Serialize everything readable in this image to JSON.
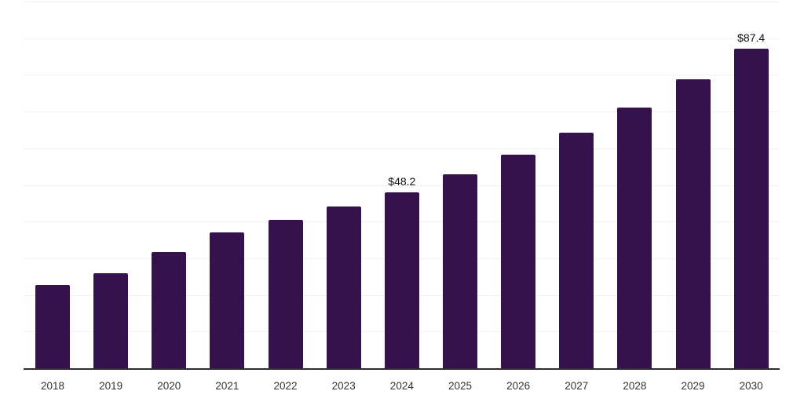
{
  "chart_data": {
    "type": "bar",
    "title": "",
    "xlabel": "",
    "ylabel": "",
    "categories": [
      "2018",
      "2019",
      "2020",
      "2021",
      "2022",
      "2023",
      "2024",
      "2025",
      "2026",
      "2027",
      "2028",
      "2029",
      "2030"
    ],
    "values": [
      22.9,
      26.1,
      32.0,
      37.3,
      40.7,
      44.3,
      48.2,
      53.2,
      58.5,
      64.4,
      71.3,
      79.1,
      87.4
    ],
    "annotations": [
      {
        "index": 6,
        "text": "$48.2"
      },
      {
        "index": 12,
        "text": "$87.4"
      }
    ],
    "ylim": [
      0,
      100
    ],
    "gridline_step": 10,
    "grid": "horizontal",
    "legend_position": "none",
    "y_axis_labels_visible": false,
    "bar_color": "#36124c",
    "axis_color": "#2e2e2e",
    "gridline_color": "#f1f1f3",
    "value_label_color": "#111111",
    "tick_label_color": "#333333",
    "background_color": "#ffffff"
  }
}
